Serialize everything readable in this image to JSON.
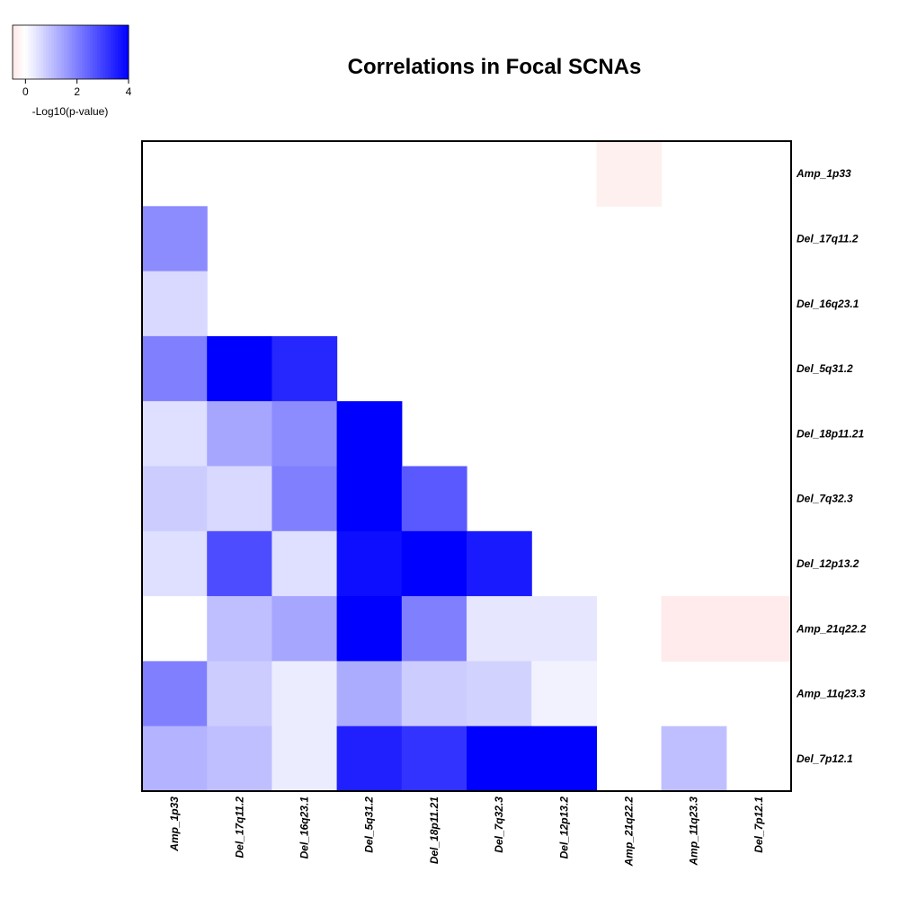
{
  "chart_data": {
    "type": "heatmap",
    "title": "Correlations in Focal SCNAs",
    "labels": [
      "Amp_1p33",
      "Del_17q11.2",
      "Del_16q23.1",
      "Del_5q31.2",
      "Del_18p11.21",
      "Del_7q32.3",
      "Del_12p13.2",
      "Amp_21q22.2",
      "Amp_11q23.3",
      "Del_7p12.1"
    ],
    "row_labels": [
      "Amp_1p33",
      "Del_17q11.2",
      "Del_16q23.1",
      "Del_5q31.2",
      "Del_18p11.21",
      "Del_7q32.3",
      "Del_12p13.2",
      "Amp_21q22.2",
      "Amp_11q23.3",
      "Del_7p12.1"
    ],
    "column_labels": [
      "Amp_1p33",
      "Del_17q11.2",
      "Del_16q23.1",
      "Del_5q31.2",
      "Del_18p11.21",
      "Del_7q32.3",
      "Del_12p13.2",
      "Amp_21q22.2",
      "Amp_11q23.3",
      "Del_7p12.1"
    ],
    "values": [
      [
        null,
        null,
        null,
        null,
        null,
        null,
        null,
        -0.3,
        null,
        null
      ],
      [
        1.8,
        null,
        null,
        null,
        null,
        null,
        null,
        null,
        null,
        null
      ],
      [
        0.6,
        null,
        null,
        null,
        null,
        null,
        null,
        null,
        null,
        null
      ],
      [
        2.0,
        4.0,
        3.4,
        null,
        null,
        null,
        null,
        null,
        null,
        null
      ],
      [
        0.5,
        1.4,
        1.8,
        4.0,
        null,
        null,
        null,
        null,
        null,
        null
      ],
      [
        0.8,
        0.6,
        2.0,
        4.0,
        2.6,
        null,
        null,
        null,
        null,
        null
      ],
      [
        0.5,
        2.8,
        0.5,
        3.8,
        4.0,
        3.6,
        null,
        null,
        null,
        null
      ],
      [
        0.0,
        1.0,
        1.4,
        4.0,
        2.0,
        0.4,
        0.4,
        null,
        -0.4,
        -0.4
      ],
      [
        2.0,
        0.8,
        0.3,
        1.3,
        0.8,
        0.7,
        0.2,
        null,
        null,
        null
      ],
      [
        1.2,
        1.0,
        0.3,
        3.5,
        3.2,
        4.0,
        4.0,
        null,
        1.0,
        null
      ]
    ],
    "color_scale": {
      "label": "-Log10(p-value)",
      "range": [
        -0.5,
        4
      ],
      "ticks": [
        "0",
        "2",
        "4"
      ],
      "low_color": "#ffe6e6",
      "mid_color": "#ffffff",
      "high_color": "#0000ff"
    },
    "legend_position": "top-left"
  }
}
